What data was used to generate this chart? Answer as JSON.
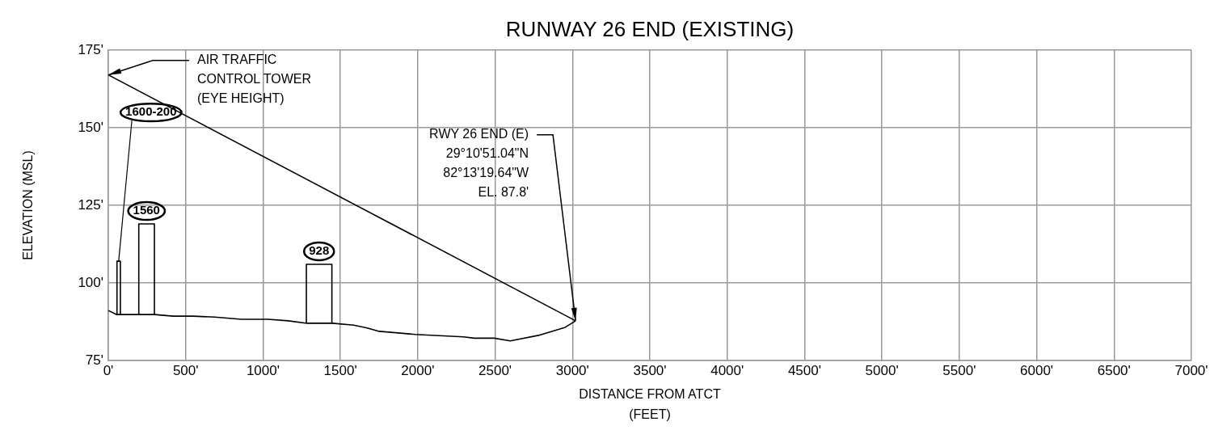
{
  "chart_data": {
    "type": "line",
    "title": "RUNWAY 26 END (EXISTING)",
    "xlabel": "DISTANCE FROM ATCT\n(FEET)",
    "ylabel": "ELEVATION (MSL)",
    "xlim": [
      0,
      7000
    ],
    "ylim": [
      75,
      175
    ],
    "xticks": [
      {
        "value": 0,
        "label": "0'"
      },
      {
        "value": 500,
        "label": "500'"
      },
      {
        "value": 1000,
        "label": "1000'"
      },
      {
        "value": 1500,
        "label": "1500'"
      },
      {
        "value": 2000,
        "label": "2000'"
      },
      {
        "value": 2500,
        "label": "2500'"
      },
      {
        "value": 3000,
        "label": "3000'"
      },
      {
        "value": 3500,
        "label": "3500'"
      },
      {
        "value": 4000,
        "label": "4000'"
      },
      {
        "value": 4500,
        "label": "4500'"
      },
      {
        "value": 5000,
        "label": "5000'"
      },
      {
        "value": 5500,
        "label": "5500'"
      },
      {
        "value": 6000,
        "label": "6000'"
      },
      {
        "value": 6500,
        "label": "6500'"
      },
      {
        "value": 7000,
        "label": "7000'"
      }
    ],
    "yticks": [
      {
        "value": 75,
        "label": "75'"
      },
      {
        "value": 100,
        "label": "100'"
      },
      {
        "value": 125,
        "label": "125'"
      },
      {
        "value": 150,
        "label": "150'"
      },
      {
        "value": 175,
        "label": "175'"
      }
    ],
    "grid": true,
    "marker": "none",
    "line_style": "solid",
    "series": [
      {
        "color": "#000000",
        "x": [
          0,
          55,
          298,
          419,
          548,
          687,
          860,
          1033,
          1162,
          1284,
          1448,
          1586,
          1673,
          1751,
          1984,
          2296,
          2365,
          2495,
          2598,
          2780,
          2953,
          3020
        ],
        "values": [
          91.1,
          89.8,
          89.8,
          89.3,
          89.3,
          89.0,
          88.3,
          88.3,
          87.8,
          87.0,
          87.0,
          86.4,
          85.5,
          84.4,
          83.4,
          82.6,
          82.2,
          82.2,
          81.3,
          83.1,
          85.7,
          87.8
        ]
      },
      {
        "color": "#000000",
        "x": [
          0,
          3020
        ],
        "values": [
          167,
          87.8
        ]
      },
      {
        "color": "#000000",
        "x": [
          56,
          56,
          78,
          78
        ],
        "values": [
          89.8,
          107,
          107,
          89.8
        ]
      },
      {
        "color": "#000000",
        "x": [
          197,
          197,
          298,
          298
        ],
        "values": [
          89.8,
          119,
          119,
          89.8
        ]
      },
      {
        "color": "#000000",
        "x": [
          1280,
          1280,
          1445,
          1445
        ],
        "values": [
          87,
          106,
          106,
          87
        ]
      }
    ],
    "annotations": [
      {
        "text": "AIR TRAFFIC\nCONTROL TOWER\n(EYE HEIGHT)",
        "x": 0,
        "y": 167
      },
      {
        "text": "RWY 26 END (E)\n29°10'51.04\"N\n82°13'19.64\"W\nEL. 87.8'",
        "x": 3020,
        "y": 87.8
      },
      {
        "text": "1600-200",
        "x": 67,
        "y": 107
      },
      {
        "text": "1560",
        "x": 247,
        "y": 119
      },
      {
        "text": "928",
        "x": 1362,
        "y": 106
      }
    ]
  }
}
